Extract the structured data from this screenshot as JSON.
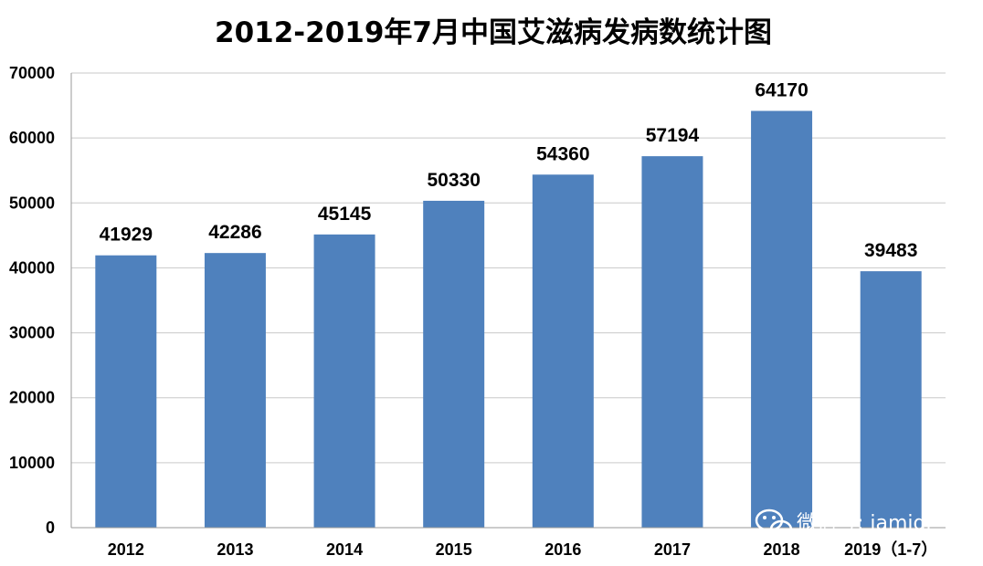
{
  "chart_data": {
    "type": "bar",
    "title": "2012-2019年7月中国艾滋病发病数统计图",
    "categories": [
      "2012",
      "2013",
      "2014",
      "2015",
      "2016",
      "2017",
      "2018",
      "2019（1-7）"
    ],
    "values": [
      41929,
      42286,
      45145,
      50330,
      54360,
      57194,
      64170,
      39483
    ],
    "data_labels": [
      "41929",
      "42286",
      "45145",
      "50330",
      "54360",
      "57194",
      "64170",
      "39483"
    ],
    "yticks": [
      "0",
      "10000",
      "20000",
      "30000",
      "40000",
      "50000",
      "60000",
      "70000"
    ],
    "ylim": [
      0,
      70000
    ],
    "grid": true,
    "bar_color": "#4f81bd"
  },
  "watermark": {
    "text": "微信号: iamidr",
    "icon": "wechat-icon"
  }
}
